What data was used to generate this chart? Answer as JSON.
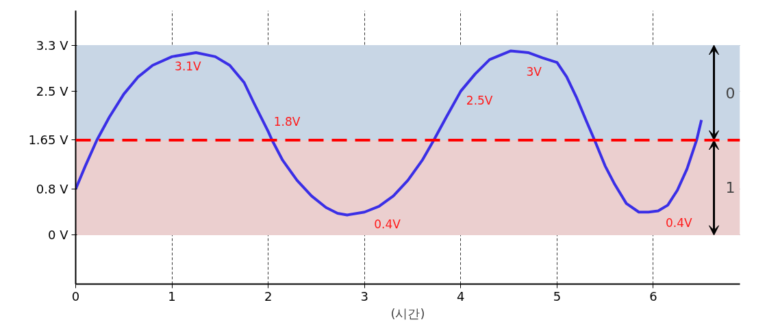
{
  "chart_data": {
    "type": "line",
    "xlabel": "(시간)",
    "x": [
      0,
      0.1,
      0.22,
      0.35,
      0.5,
      0.65,
      0.8,
      1.0,
      1.25,
      1.45,
      1.6,
      1.75,
      1.85,
      2.0,
      2.04,
      2.15,
      2.3,
      2.45,
      2.6,
      2.72,
      2.82,
      3.0,
      3.15,
      3.3,
      3.45,
      3.6,
      3.72,
      3.85,
      4.0,
      4.15,
      4.3,
      4.52,
      4.7,
      4.85,
      5.0,
      5.1,
      5.2,
      5.3,
      5.39,
      5.5,
      5.6,
      5.72,
      5.85,
      5.95,
      6.05,
      6.15,
      6.25,
      6.35,
      6.45,
      6.5
    ],
    "series": [
      {
        "color": "#3a2fe6",
        "values": [
          0.8,
          1.2,
          1.65,
          2.05,
          2.45,
          2.75,
          2.95,
          3.1,
          3.17,
          3.1,
          2.95,
          2.65,
          2.3,
          1.8,
          1.65,
          1.3,
          0.95,
          0.68,
          0.48,
          0.38,
          0.35,
          0.4,
          0.5,
          0.68,
          0.95,
          1.3,
          1.65,
          2.05,
          2.5,
          2.8,
          3.05,
          3.2,
          3.17,
          3.08,
          3.0,
          2.75,
          2.4,
          2.0,
          1.65,
          1.2,
          0.88,
          0.55,
          0.4,
          0.4,
          0.42,
          0.52,
          0.78,
          1.15,
          1.65,
          2.0
        ]
      }
    ],
    "xlim": [
      0,
      6.9
    ],
    "ylim": [
      -0.85,
      3.9
    ],
    "xticks": [
      0,
      1,
      2,
      3,
      4,
      5,
      6
    ],
    "yticks": [
      {
        "value": 0,
        "label": "0 V"
      },
      {
        "value": 0.8,
        "label": "0.8 V"
      },
      {
        "value": 1.65,
        "label": "1.65 V"
      },
      {
        "value": 2.5,
        "label": "2.5 V"
      },
      {
        "value": 3.3,
        "label": "3.3 V"
      }
    ],
    "grid": true,
    "line_style": "solid",
    "marker": "none",
    "ref_lines": [
      {
        "axis": "y",
        "value": 1.65,
        "label": null,
        "color": "#ff0000",
        "line_style": "dashed"
      }
    ],
    "bands": [
      {
        "axis": "y",
        "from": 1.65,
        "to": 3.3,
        "label": "0",
        "color": "#c8d6e5"
      },
      {
        "axis": "y",
        "from": 0,
        "to": 1.65,
        "label": "1",
        "color": "#ebcfcf"
      }
    ],
    "annotations": [
      {
        "text": "3.1V",
        "x": 1,
        "y": 3.1
      },
      {
        "text": "1.8V",
        "x": 2,
        "y": 1.8
      },
      {
        "text": "0.4V",
        "x": 3,
        "y": 0.4
      },
      {
        "text": "2.5V",
        "x": 4,
        "y": 2.5
      },
      {
        "text": "3V",
        "x": 5,
        "y": 3
      },
      {
        "text": "0.4V",
        "x": 6,
        "y": 0.4
      }
    ]
  }
}
